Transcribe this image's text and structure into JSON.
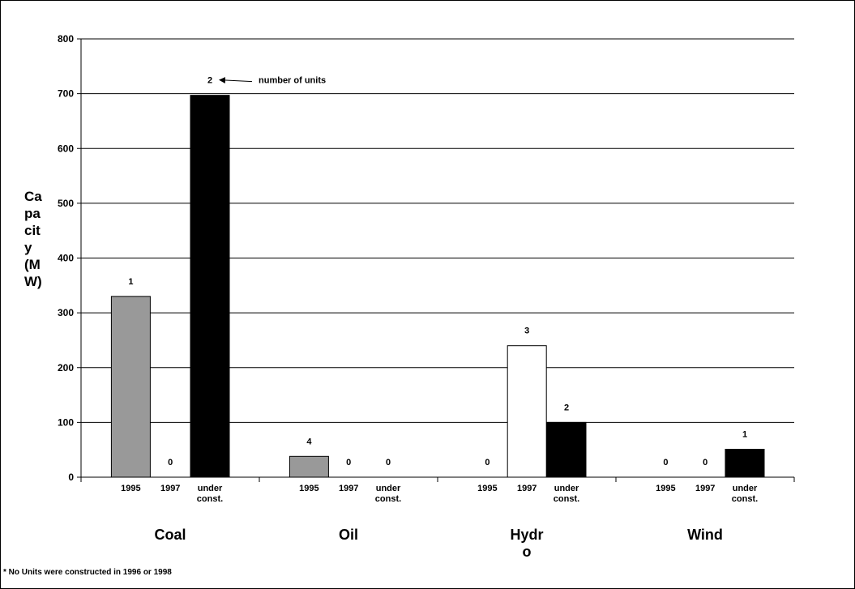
{
  "chart_data": {
    "type": "bar",
    "ylabel_lines": [
      "Ca",
      "pa",
      "cit",
      "y",
      "(M",
      "W)"
    ],
    "ylim": [
      0,
      800
    ],
    "yticks": [
      0,
      100,
      200,
      300,
      400,
      500,
      600,
      700,
      800
    ],
    "grid": true,
    "groups": [
      {
        "name": "Coal",
        "name_lines": [
          "Coal"
        ],
        "bars": [
          {
            "label_lines": [
              "1995"
            ],
            "value": 330,
            "units": "1",
            "color": "#999999"
          },
          {
            "label_lines": [
              "1997"
            ],
            "value": 0,
            "units": "0",
            "color": "#ffffff"
          },
          {
            "label_lines": [
              "under",
              "const."
            ],
            "value": 697,
            "units": "2",
            "color": "#000000"
          }
        ]
      },
      {
        "name": "Oil",
        "name_lines": [
          "Oil"
        ],
        "bars": [
          {
            "label_lines": [
              "1995"
            ],
            "value": 38,
            "units": "4",
            "color": "#999999"
          },
          {
            "label_lines": [
              "1997"
            ],
            "value": 0,
            "units": "0",
            "color": "#ffffff"
          },
          {
            "label_lines": [
              "under",
              "const."
            ],
            "value": 0,
            "units": "0",
            "color": "#000000"
          }
        ]
      },
      {
        "name": "Hydro",
        "name_lines": [
          "Hydr",
          "o"
        ],
        "bars": [
          {
            "label_lines": [
              "1995"
            ],
            "value": 0,
            "units": "0",
            "color": "#999999"
          },
          {
            "label_lines": [
              "1997"
            ],
            "value": 240,
            "units": "3",
            "color": "#ffffff"
          },
          {
            "label_lines": [
              "under",
              "const."
            ],
            "value": 100,
            "units": "2",
            "color": "#000000"
          }
        ]
      },
      {
        "name": "Wind",
        "name_lines": [
          "Wind"
        ],
        "bars": [
          {
            "label_lines": [
              "1995"
            ],
            "value": 0,
            "units": "0",
            "color": "#999999"
          },
          {
            "label_lines": [
              "1997"
            ],
            "value": 0,
            "units": "0",
            "color": "#ffffff"
          },
          {
            "label_lines": [
              "under",
              "const."
            ],
            "value": 51,
            "units": "1",
            "color": "#000000"
          }
        ]
      }
    ],
    "annotation": "number of units",
    "footnote": "* No Units were constructed in 1996 or 1998"
  }
}
